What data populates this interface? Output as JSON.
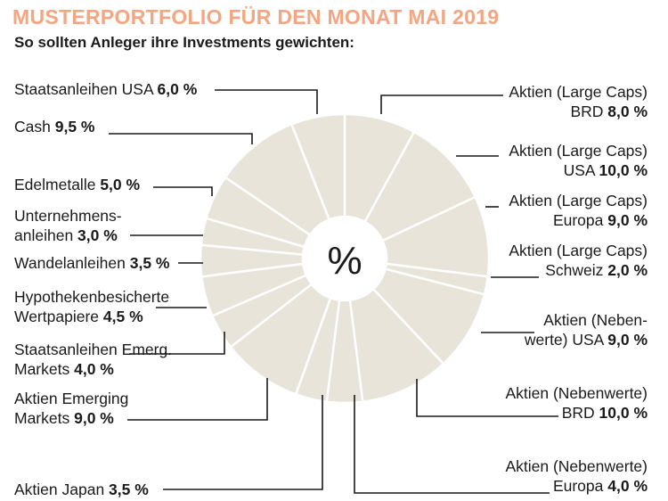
{
  "title": "MUSTERPORTFOLIO FÜR DEN MONAT MAI 2019",
  "subtitle": "So sollten Anleger ihre Investments gewichten:",
  "center_label": "%",
  "colors": {
    "title": "#f4a582",
    "slice_fill": "#e8e4da",
    "slice_stroke": "#ffffff",
    "leader": "#1a1a1a",
    "center": "#ffffff"
  },
  "chart_data": {
    "type": "pie",
    "variant": "donut",
    "title": "MUSTERPORTFOLIO FÜR DEN MONAT MAI 2019",
    "subtitle": "So sollten Anleger ihre Investments gewichten:",
    "slices": [
      {
        "name": "Aktien (Large Caps) BRD",
        "value": 8.0,
        "text1": "Aktien (Large Caps)",
        "text2": "BRD",
        "pct": "8,0 %"
      },
      {
        "name": "Aktien (Large Caps) USA",
        "value": 10.0,
        "text1": "Aktien (Large Caps)",
        "text2": "USA",
        "pct": "10,0 %"
      },
      {
        "name": "Aktien (Large Caps) Europa",
        "value": 9.0,
        "text1": "Aktien (Large Caps)",
        "text2": "Europa",
        "pct": "9,0  %"
      },
      {
        "name": "Aktien (Large Caps) Schweiz",
        "value": 2.0,
        "text1": "Aktien (Large Caps)",
        "text2": "Schweiz",
        "pct": "2,0 %"
      },
      {
        "name": "Aktien (Nebenwerte) USA",
        "value": 9.0,
        "text1": "Aktien (Neben-",
        "text2": "werte) USA",
        "pct": "9,0 %"
      },
      {
        "name": "Aktien (Nebenwerte) BRD",
        "value": 10.0,
        "text1": "Aktien (Nebenwerte)",
        "text2": "BRD",
        "pct": "10,0 %"
      },
      {
        "name": "Aktien (Nebenwerte) Europa",
        "value": 4.0,
        "text1": "Aktien (Nebenwerte)",
        "text2": "Europa",
        "pct": "4,0 %"
      },
      {
        "name": "Aktien Japan",
        "value": 3.5,
        "text1": "",
        "text2": "Aktien Japan",
        "pct": "3,5 %"
      },
      {
        "name": "Aktien Emerging Markets",
        "value": 9.0,
        "text1": "Aktien Emerging",
        "text2": "Markets",
        "pct": "9,0 %"
      },
      {
        "name": "Staatsanleihen Emerg. Markets",
        "value": 4.0,
        "text1": "Staatsanleihen Emerg.",
        "text2": "Markets",
        "pct": "4,0 %"
      },
      {
        "name": "Hypothekenbesicherte Wertpapiere",
        "value": 4.5,
        "text1": "Hypothekenbesicherte",
        "text2": "Wertpapiere",
        "pct": "4,5 %"
      },
      {
        "name": "Wandelanleihen",
        "value": 3.5,
        "text1": "",
        "text2": "Wandelanleihen",
        "pct": "3,5 %"
      },
      {
        "name": "Unternehmensanleihen",
        "value": 3.0,
        "text1": "Unternehmens-",
        "text2": "anleihen",
        "pct": "3,0 %"
      },
      {
        "name": "Edelmetalle",
        "value": 5.0,
        "text1": "",
        "text2": "Edelmetalle",
        "pct": "5,0 %"
      },
      {
        "name": "Cash",
        "value": 9.5,
        "text1": "",
        "text2": "Cash",
        "pct": "9,5 %"
      },
      {
        "name": "Staatsanleihen USA",
        "value": 6.0,
        "text1": "",
        "text2": "Staatsanleihen USA",
        "pct": "6,0 %"
      }
    ]
  }
}
